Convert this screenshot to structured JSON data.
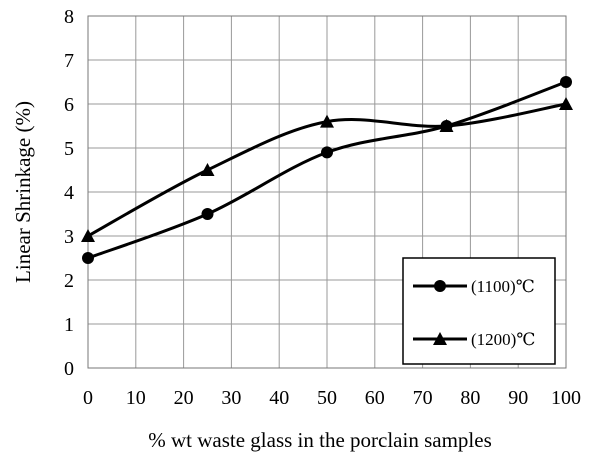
{
  "chart_data": {
    "type": "line",
    "xlabel": "% wt  waste glass in the porclain samples",
    "ylabel": "Linear Shrinkage (%)",
    "xlim": [
      0,
      100
    ],
    "ylim": [
      0,
      8
    ],
    "x_ticks": [
      "0",
      "10",
      "20",
      "30",
      "40",
      "50",
      "60",
      "70",
      "80",
      "90",
      "100"
    ],
    "y_ticks": [
      "0",
      "1",
      "2",
      "3",
      "4",
      "5",
      "6",
      "7",
      "8"
    ],
    "grid": true,
    "smooth": true,
    "legend_position": "bottom-right",
    "series": [
      {
        "name": "(1100)℃",
        "marker": "circle",
        "x": [
          0,
          25,
          50,
          75,
          100
        ],
        "y": [
          2.5,
          3.5,
          4.9,
          5.5,
          6.5
        ]
      },
      {
        "name": "(1200)℃",
        "marker": "triangle",
        "x": [
          0,
          25,
          50,
          75,
          100
        ],
        "y": [
          3.0,
          4.5,
          5.6,
          5.5,
          6.0
        ]
      }
    ],
    "colors": {
      "line": "#000000",
      "grid": "#999999",
      "background": "#ffffff"
    }
  }
}
